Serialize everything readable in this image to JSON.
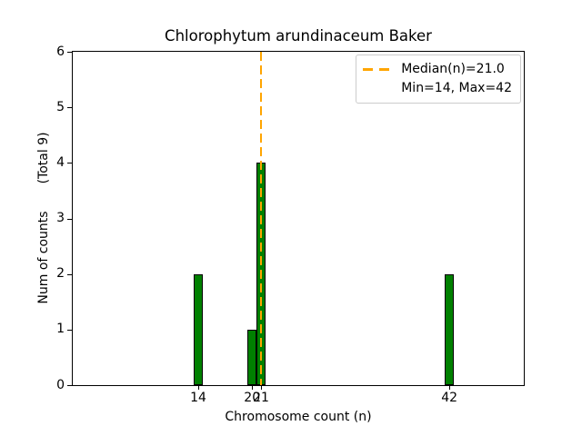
{
  "chart_data": {
    "type": "bar",
    "title": "Chlorophytum arundinaceum Baker",
    "xlabel": "Chromosome count (n)",
    "ylabel": "Num of counts",
    "ylabel_suffix": "(Total 9)",
    "x": [
      14,
      20,
      21,
      42
    ],
    "values": [
      2,
      1,
      4,
      2
    ],
    "total_counts": 9,
    "bar_width": 1,
    "xticks": [
      "14",
      "20",
      "21",
      "42"
    ],
    "xtick_values": [
      14,
      20,
      21,
      42
    ],
    "yticks": [
      "0",
      "1",
      "2",
      "3",
      "4",
      "5",
      "6"
    ],
    "ytick_values": [
      0,
      1,
      2,
      3,
      4,
      5,
      6
    ],
    "xlim": [
      0,
      50.3
    ],
    "ylim": [
      0,
      6
    ],
    "median": 21.0,
    "min": 14,
    "max": 42,
    "grid": false,
    "legend_position": "upper right",
    "legend": {
      "entries": [
        {
          "label": "Median(n)=21.0",
          "swatch": "orange-dashed-line"
        },
        {
          "label": "Min=14, Max=42",
          "swatch": "none"
        }
      ]
    },
    "colors": {
      "bar": "#008000",
      "bar_edge": "#000000",
      "median_line": "#FFA500",
      "axis": "#000000",
      "background": "#ffffff",
      "legend_border": "#cccccc"
    }
  }
}
